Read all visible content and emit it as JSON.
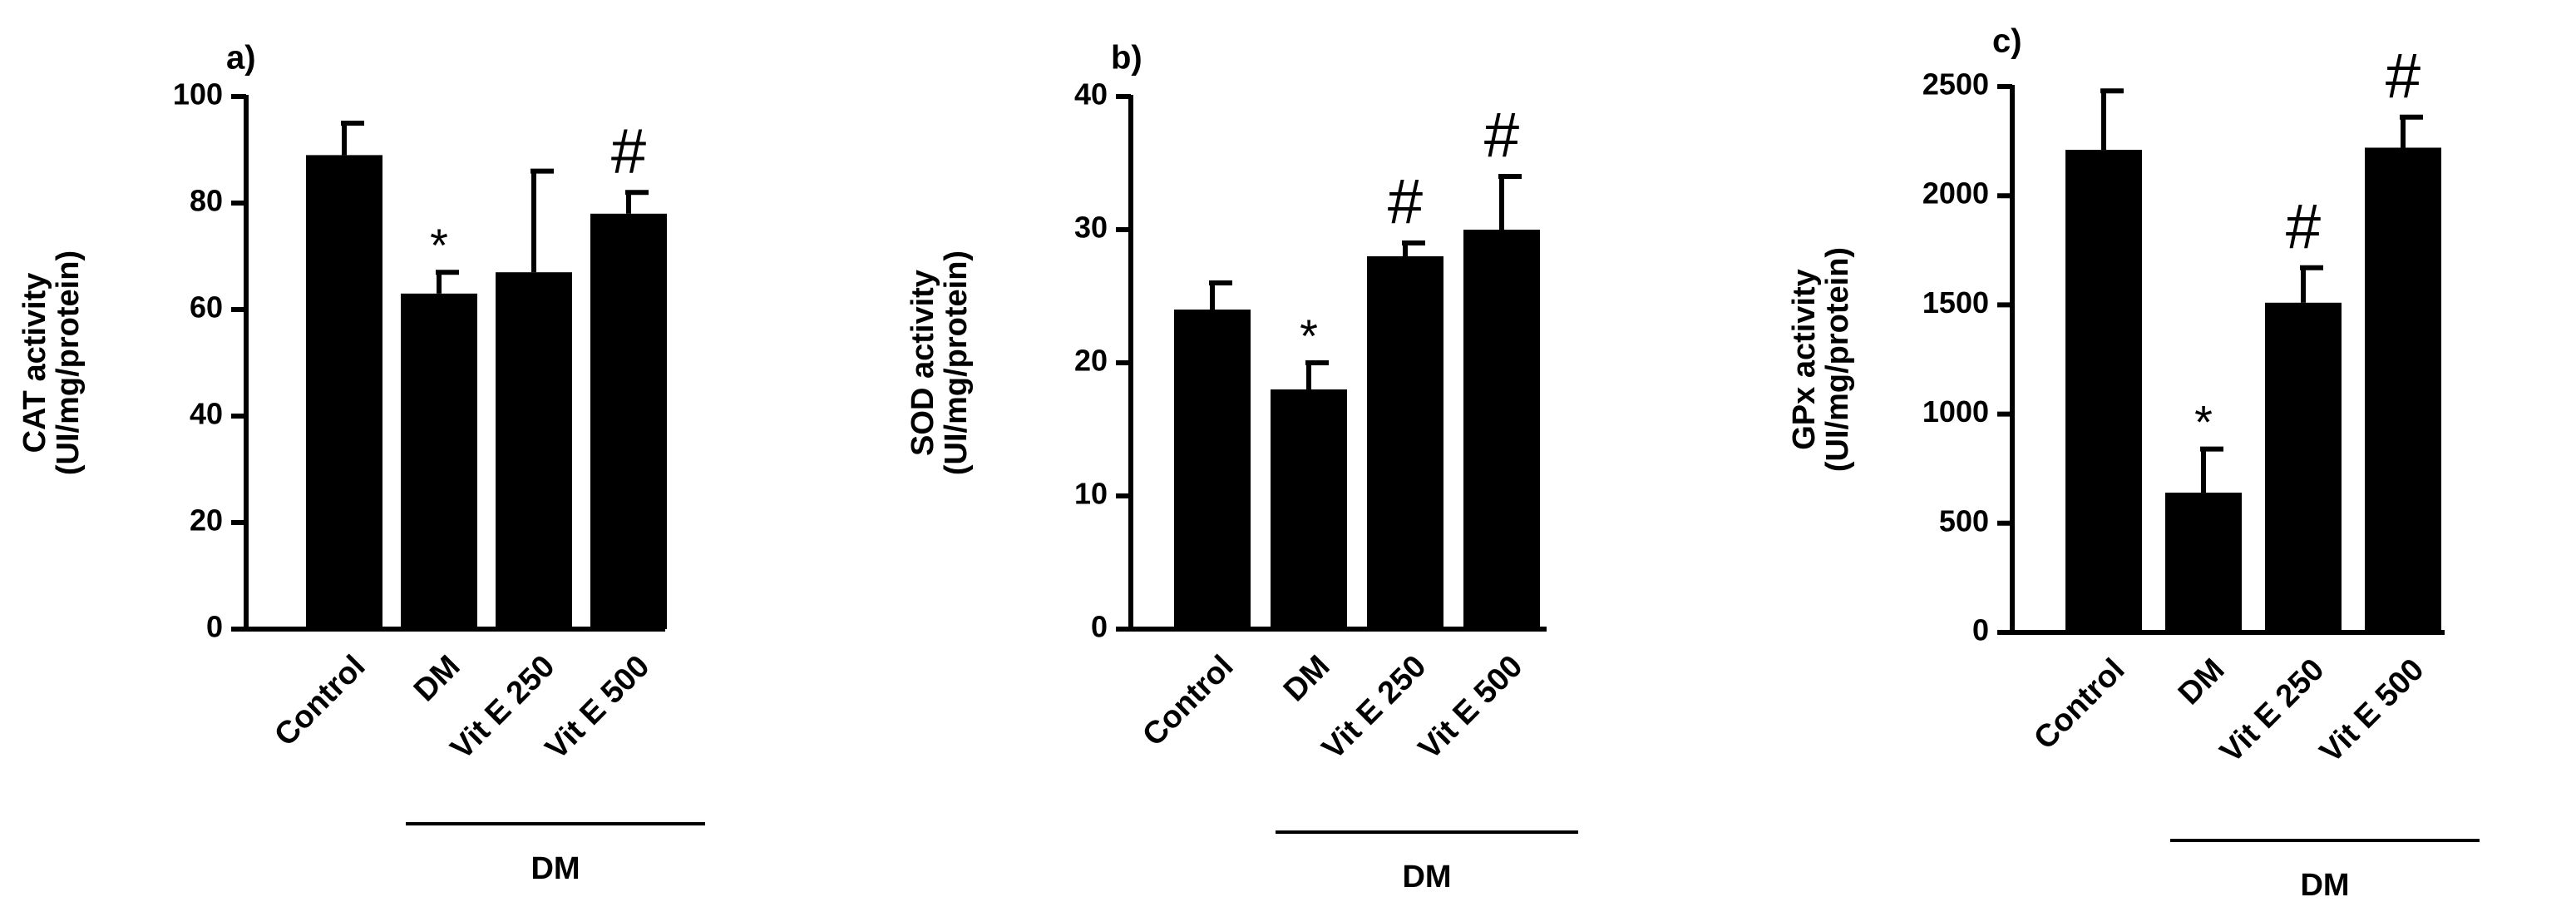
{
  "chart_data": [
    {
      "type": "bar",
      "panel_label": "a)",
      "ylabel": [
        "CAT activity",
        "(UI/mg/protein)"
      ],
      "categories": [
        "Control",
        "DM",
        "Vit E 250",
        "Vit E 500"
      ],
      "values": [
        89,
        63,
        67,
        78
      ],
      "errors": [
        6,
        4,
        19,
        4
      ],
      "annotations": [
        null,
        "*",
        null,
        "#"
      ],
      "group_label": "DM",
      "color": "#000000",
      "ylim": [
        0,
        100
      ],
      "yticks": [
        0,
        20,
        40,
        60,
        80,
        100
      ]
    },
    {
      "type": "bar",
      "panel_label": "b)",
      "ylabel": [
        "SOD activity",
        "(UI/mg/protein)"
      ],
      "categories": [
        "Control",
        "DM",
        "Vit E 250",
        "Vit E 500"
      ],
      "values": [
        24,
        18,
        28,
        30
      ],
      "errors": [
        2,
        2,
        1,
        4
      ],
      "annotations": [
        null,
        "*",
        "#",
        "#"
      ],
      "group_label": "DM",
      "color": "#000000",
      "ylim": [
        0,
        40
      ],
      "yticks": [
        0,
        10,
        20,
        30,
        40
      ]
    },
    {
      "type": "bar",
      "panel_label": "c)",
      "ylabel": [
        "GPx activity",
        "(UI/mg/protein)"
      ],
      "categories": [
        "Control",
        "DM",
        "Vit E 250",
        "Vit E 500"
      ],
      "values": [
        2210,
        640,
        1510,
        2220
      ],
      "errors": [
        270,
        200,
        160,
        140
      ],
      "annotations": [
        null,
        "*",
        "#",
        "#"
      ],
      "group_label": "DM",
      "color": "#000000",
      "ylim": [
        0,
        2500
      ],
      "yticks": [
        0,
        500,
        1000,
        1500,
        2000,
        2500
      ]
    }
  ]
}
